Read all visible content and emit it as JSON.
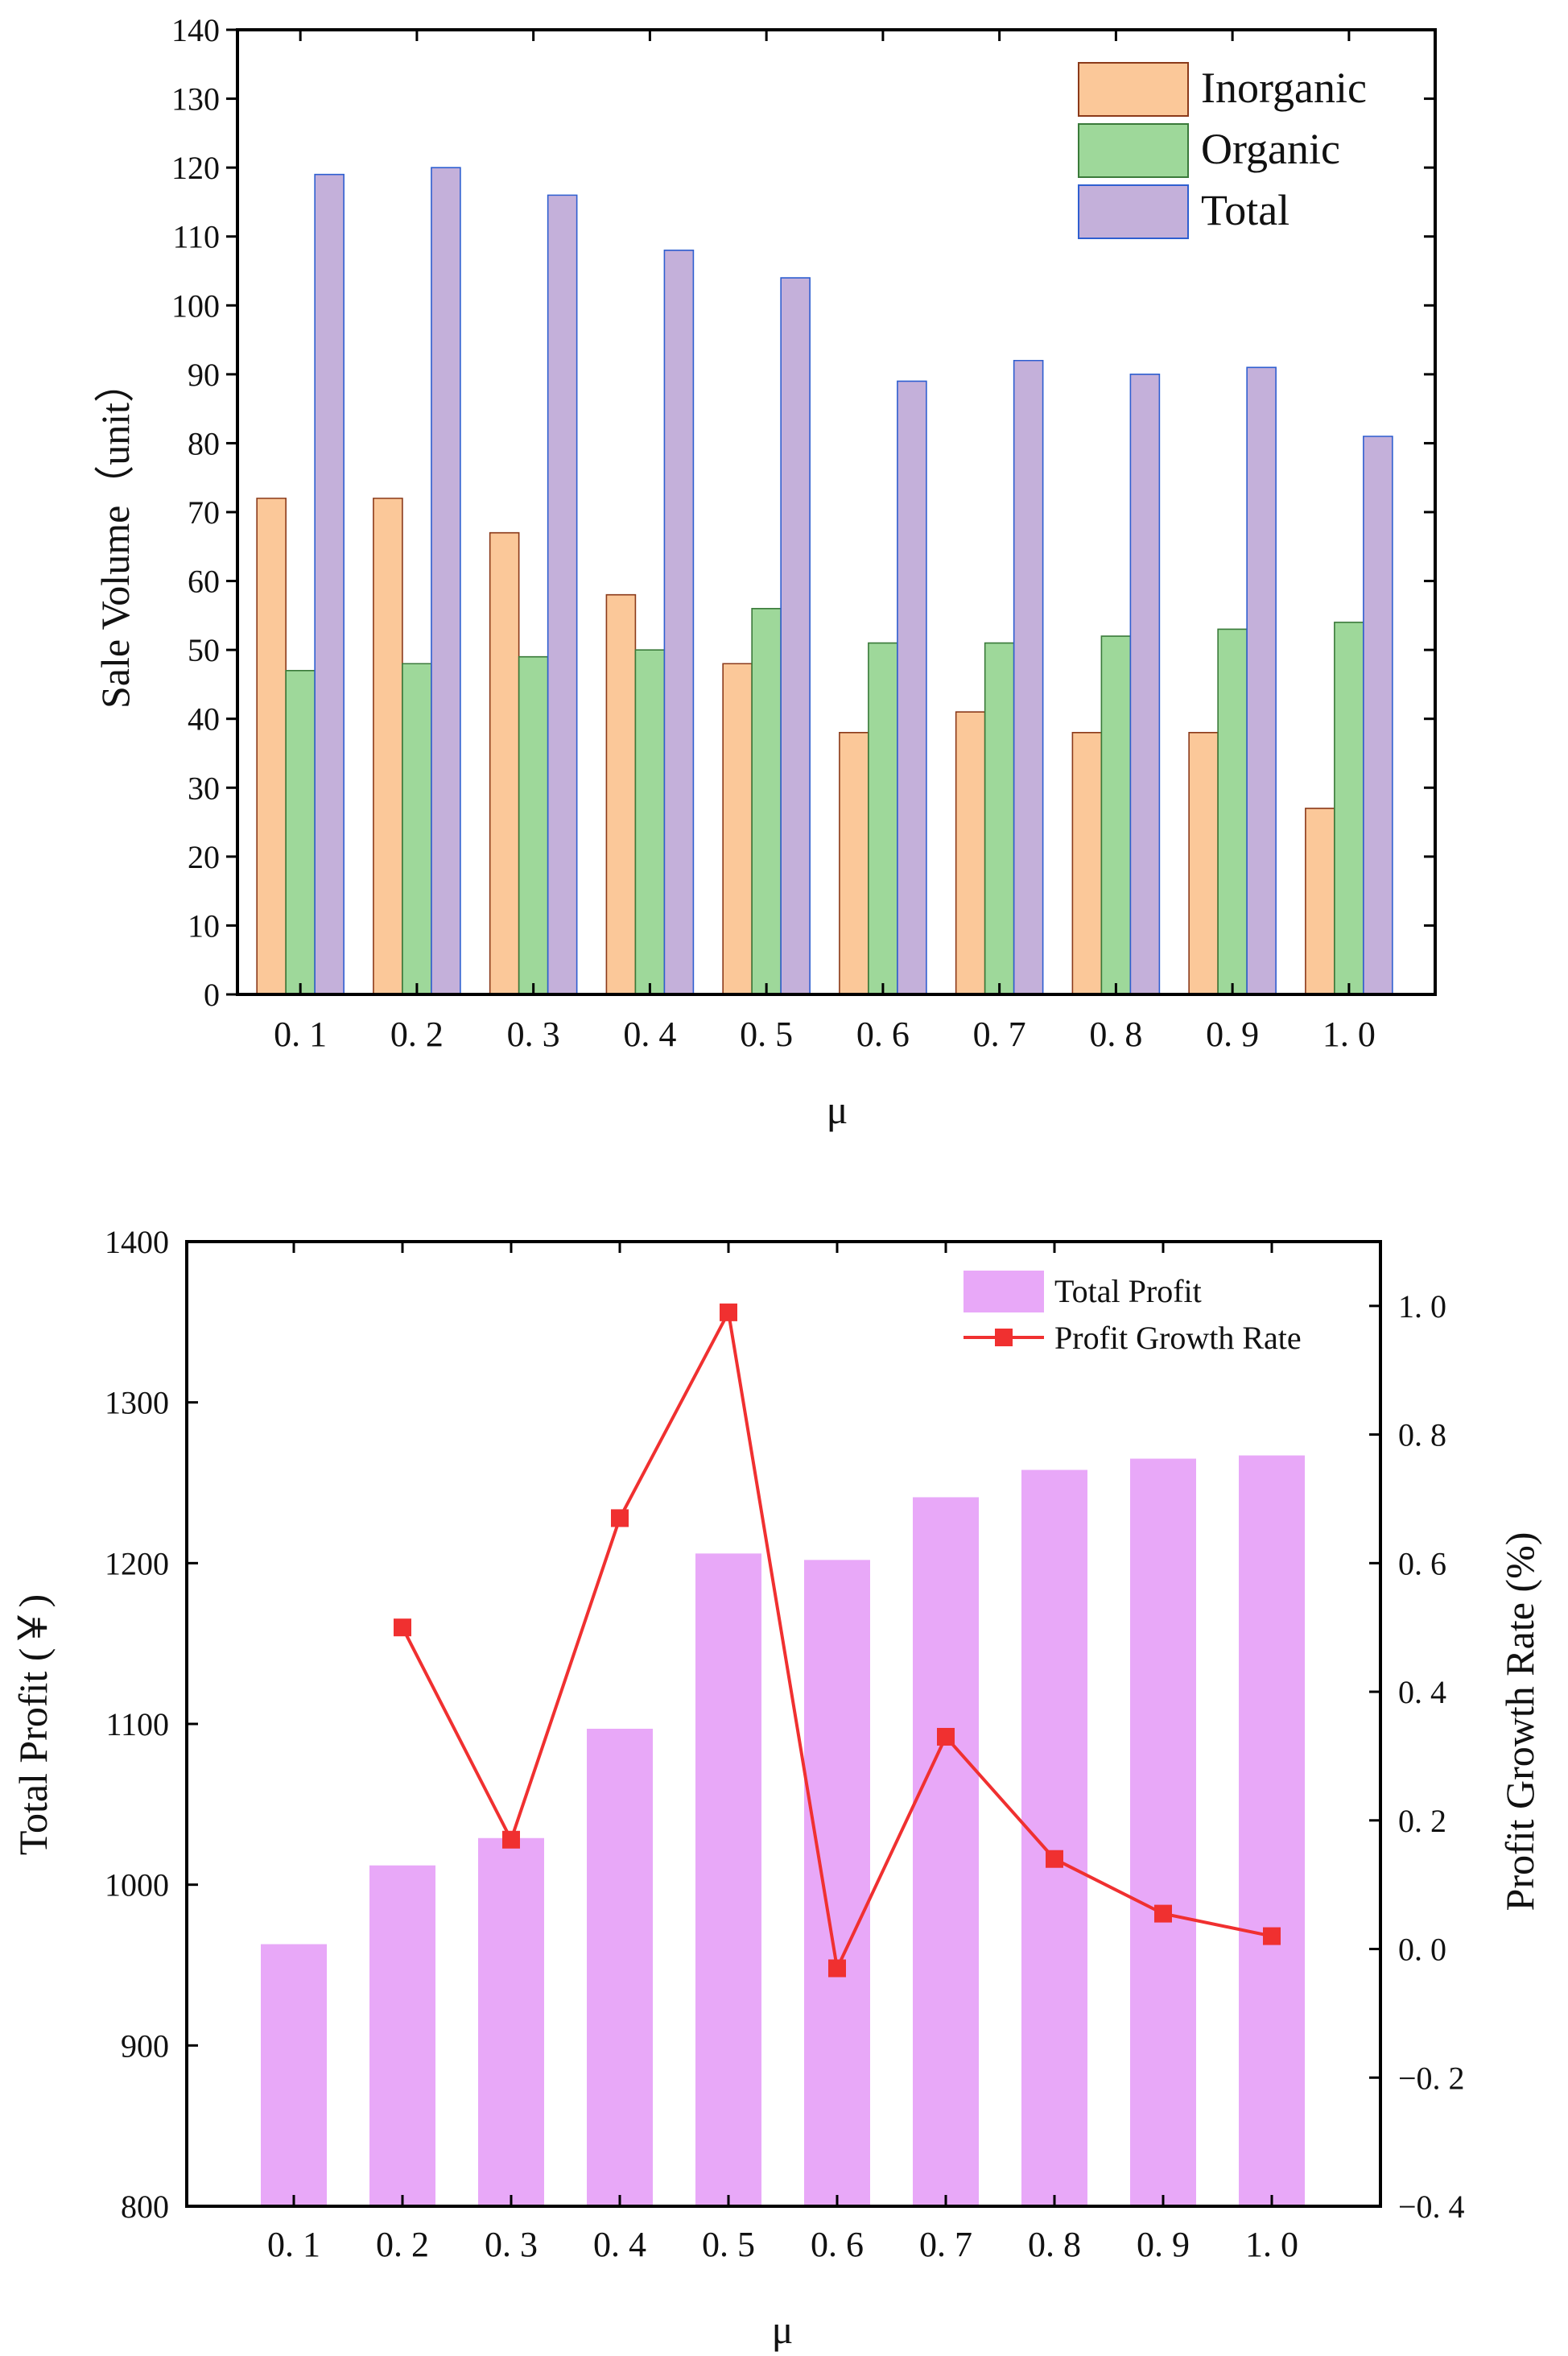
{
  "chart_data": [
    {
      "type": "bar",
      "categories": [
        "0. 1",
        "0. 2",
        "0. 3",
        "0. 4",
        "0. 5",
        "0. 6",
        "0. 7",
        "0. 8",
        "0. 9",
        "1. 0"
      ],
      "series": [
        {
          "name": "Inorganic",
          "values": [
            72,
            72,
            67,
            58,
            48,
            38,
            41,
            38,
            38,
            27
          ],
          "color": "#FBC899",
          "edge": "#8B3A1A"
        },
        {
          "name": "Organic",
          "values": [
            47,
            48,
            49,
            50,
            56,
            51,
            51,
            52,
            53,
            54
          ],
          "color": "#9ED89A",
          "edge": "#3A7A3A"
        },
        {
          "name": "Total",
          "values": [
            119,
            120,
            116,
            108,
            104,
            89,
            92,
            90,
            91,
            81
          ],
          "color": "#C4B0DA",
          "edge": "#2F5FD0"
        }
      ],
      "yticks": [
        "0",
        "10",
        "20",
        "30",
        "40",
        "50",
        "60",
        "70",
        "80",
        "90",
        "100",
        "110",
        "120",
        "130",
        "140"
      ],
      "ylim": [
        0,
        140
      ],
      "xlabel": "μ",
      "ylabel": "Sale Volume（unit）",
      "title": "",
      "legend": "top-right"
    },
    {
      "type": "bar+line",
      "categories": [
        "0. 1",
        "0. 2",
        "0. 3",
        "0. 4",
        "0. 5",
        "0. 6",
        "0. 7",
        "0. 8",
        "0. 9",
        "1. 0"
      ],
      "bars": {
        "name": "Total Profit",
        "values": [
          963,
          1012,
          1029,
          1097,
          1206,
          1202,
          1241,
          1258,
          1265,
          1267
        ],
        "color": "#E8A8F8"
      },
      "line": {
        "name": "Profit Growth Rate",
        "values": [
          null,
          0.5,
          0.17,
          0.67,
          0.99,
          -0.03,
          0.33,
          0.14,
          0.055,
          0.02
        ],
        "color": "#F03030"
      },
      "yticks_left": [
        "800",
        "900",
        "1000",
        "1100",
        "1200",
        "1300",
        "1400"
      ],
      "ylim_left": [
        800,
        1400
      ],
      "yticks_right": [
        "−0. 4",
        "−0. 2",
        "0. 0",
        "0. 2",
        "0. 4",
        "0. 6",
        "0. 8",
        "1. 0"
      ],
      "ylim_right": [
        -0.4,
        1.1
      ],
      "xlabel": "μ",
      "ylabel_left": "Total Profit (￥)",
      "ylabel_right": "Profit Growth Rate (%)",
      "title": "",
      "legend": "top-right"
    }
  ]
}
